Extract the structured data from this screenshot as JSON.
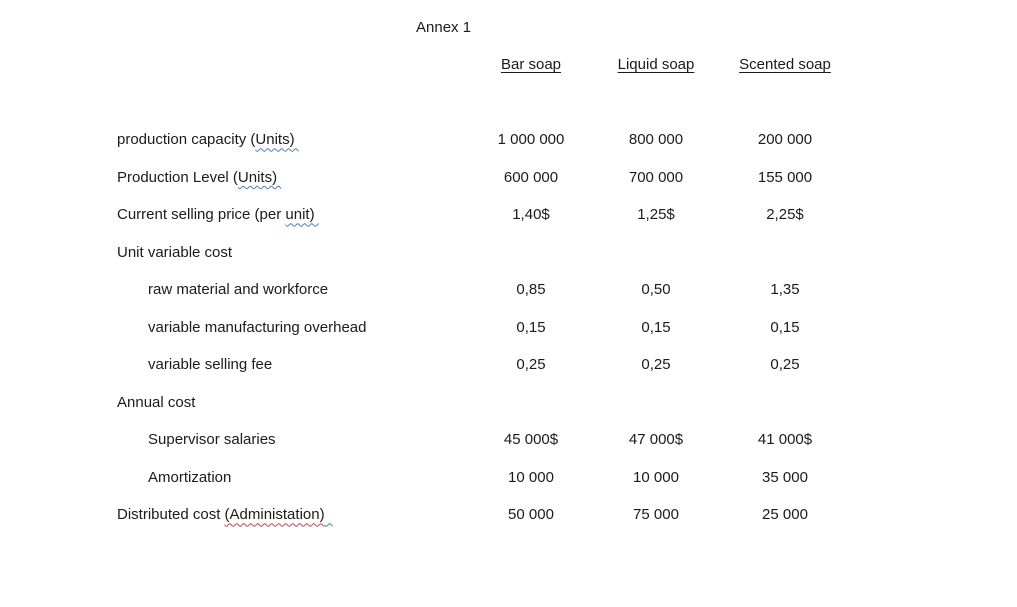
{
  "document": {
    "title": "Annex 1"
  },
  "colors": {
    "background": "#ffffff",
    "text": "#1b1b1b",
    "grammar_squiggle_blue": "#4a7ebb",
    "spelling_squiggle_red": "#cb4040"
  },
  "table": {
    "columns": [
      "Bar soap",
      "Liquid soap",
      "Scented soap"
    ],
    "rows": [
      {
        "label_pre": "production capacity (",
        "label_flag_blue": "Units) ",
        "values": [
          "1 000 000",
          "800 000",
          "200 000"
        ]
      },
      {
        "label_pre": "Production Level (",
        "label_flag_blue": "Units) ",
        "values": [
          "600 000",
          "700 000",
          "155 000"
        ]
      },
      {
        "label_pre": "Current selling price (per ",
        "label_flag_blue": "unit) ",
        "values": [
          "1,40$",
          "1,25$",
          "2,25$"
        ]
      },
      {
        "label_pre": "Unit variable cost",
        "values": [
          "",
          "",
          ""
        ]
      },
      {
        "label_pre": "raw material and workforce",
        "values": [
          "0,85",
          "0,50",
          "1,35"
        ]
      },
      {
        "label_pre": "variable manufacturing overhead",
        "values": [
          "0,15",
          "0,15",
          "0,15"
        ]
      },
      {
        "label_pre": "variable selling fee",
        "values": [
          "0,25",
          "0,25",
          "0,25"
        ]
      },
      {
        "label_pre": "Annual cost",
        "values": [
          "",
          "",
          ""
        ]
      },
      {
        "label_pre": "Supervisor salaries",
        "values": [
          "45 000$",
          "47 000$",
          "41 000$"
        ]
      },
      {
        "label_pre": "Amortization",
        "values": [
          "10 000",
          "10 000",
          "35 000"
        ]
      },
      {
        "label_pre": "Distributed cost ",
        "label_flag_red": "(Administation)",
        "label_flag_blue": "  ",
        "values": [
          "50 000",
          "75 000",
          "25 000"
        ]
      }
    ]
  }
}
